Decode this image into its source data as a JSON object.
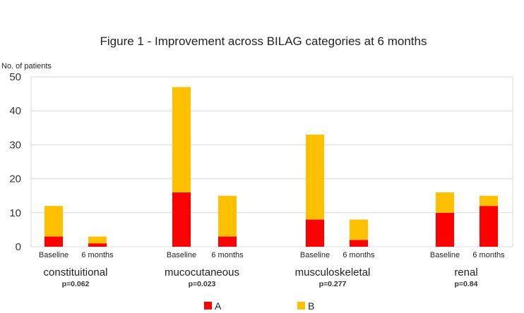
{
  "chart_data": {
    "type": "bar",
    "stacked": true,
    "title": "Figure 1 - Improvement across BILAG categories at 6 months",
    "ylabel": "No. of patients",
    "xlabel": "",
    "ylim": [
      0,
      50
    ],
    "yticks": [
      0,
      10,
      20,
      30,
      40,
      50
    ],
    "grid": true,
    "legend_position": "bottom",
    "groups": [
      {
        "name": "constituitional",
        "p_value": "p=0.062"
      },
      {
        "name": "mucocutaneous",
        "p_value": "p=0.023"
      },
      {
        "name": "musculoskeletal",
        "p_value": "p=0.277"
      },
      {
        "name": "renal",
        "p_value": "p=0.84"
      }
    ],
    "timepoints": [
      "Baseline",
      "6 months"
    ],
    "series": [
      {
        "name": "A",
        "color": "#ff0000",
        "values": [
          [
            3,
            1
          ],
          [
            16,
            3
          ],
          [
            8,
            2
          ],
          [
            10,
            12
          ]
        ]
      },
      {
        "name": "B",
        "color": "#ffc000",
        "values": [
          [
            9,
            2
          ],
          [
            31,
            12
          ],
          [
            25,
            6
          ],
          [
            6,
            3
          ]
        ]
      }
    ]
  }
}
